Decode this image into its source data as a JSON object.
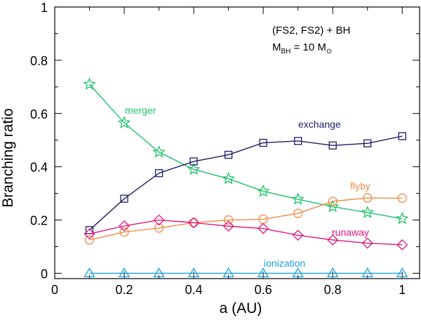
{
  "chart_data": {
    "type": "line",
    "xlabel": "a (AU)",
    "ylabel": "Branching ratio",
    "xlim": [
      0,
      1.05
    ],
    "ylim": [
      -0.02,
      1.0
    ],
    "x_ticks": [
      "0",
      "0.2",
      "0.4",
      "0.6",
      "0.8",
      "1"
    ],
    "y_ticks": [
      "0",
      "0.2",
      "0.4",
      "0.6",
      "0.8",
      "1"
    ],
    "x_tick_values": [
      0,
      0.2,
      0.4,
      0.6,
      0.8,
      1.0
    ],
    "y_tick_values": [
      0,
      0.2,
      0.4,
      0.6,
      0.8,
      1.0
    ],
    "annotation": {
      "line1": "(FS2, FS2) + BH",
      "line2_prefix": "M",
      "line2_sub": "BH",
      "line2_mid": " = 10 M",
      "line2_sun": "⊙"
    },
    "x": [
      0.1,
      0.2,
      0.3,
      0.4,
      0.5,
      0.6,
      0.7,
      0.8,
      0.9,
      1.0
    ],
    "series": [
      {
        "name": "merger",
        "marker": "star",
        "color": "#1ec26a",
        "values": [
          0.71,
          0.565,
          0.455,
          0.39,
          0.355,
          0.308,
          0.278,
          0.25,
          0.228,
          0.205
        ]
      },
      {
        "name": "exchange",
        "marker": "square",
        "color": "#1c1c6b",
        "values": [
          0.162,
          0.28,
          0.376,
          0.42,
          0.445,
          0.49,
          0.497,
          0.48,
          0.488,
          0.515
        ]
      },
      {
        "name": "flyby",
        "marker": "circle",
        "color": "#f08a46",
        "values": [
          0.125,
          0.155,
          0.17,
          0.19,
          0.2,
          0.203,
          0.225,
          0.27,
          0.283,
          0.282
        ]
      },
      {
        "name": "runaway",
        "marker": "diamond",
        "color": "#e0157a",
        "values": [
          0.148,
          0.178,
          0.2,
          0.19,
          0.177,
          0.168,
          0.143,
          0.125,
          0.113,
          0.107
        ]
      },
      {
        "name": "ionization",
        "marker": "triangle",
        "color": "#1aa0d8",
        "values": [
          0.0,
          0.0,
          0.0,
          0.0,
          0.0,
          0.0,
          0.0,
          0.0,
          0.0,
          0.0
        ]
      }
    ]
  }
}
